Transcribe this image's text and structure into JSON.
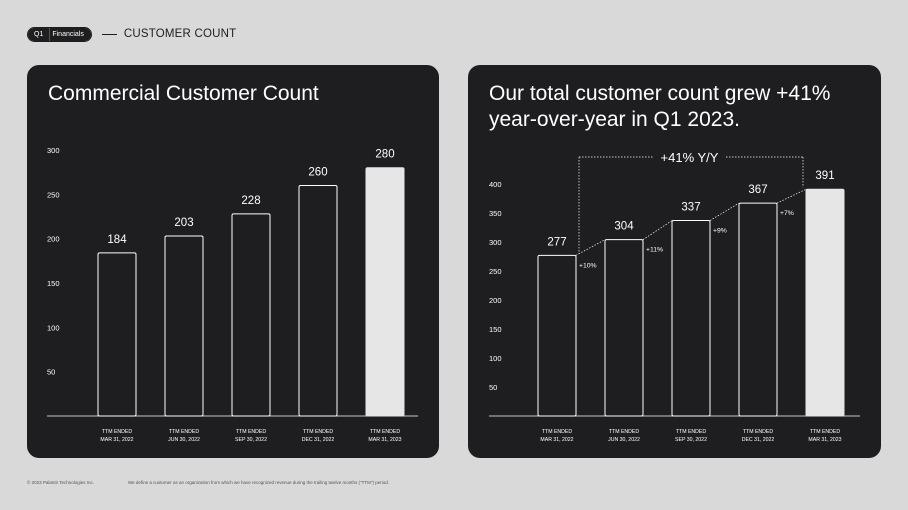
{
  "header": {
    "pill_q": "Q1",
    "pill_f": "Financials",
    "title": "CUSTOMER COUNT"
  },
  "footer": {
    "copyright": "© 2023 Palantir Technologies Inc.",
    "note": "We define a customer as an organization from which we have recognized revenue during the trailing twelve months (\"TTM\") period."
  },
  "colors": {
    "panel": "#1e1e20",
    "background": "#d9d9d9",
    "highlight_bar": "#e6e6e6",
    "bar_outline": "#ffffff"
  },
  "chart_data": [
    {
      "type": "bar",
      "title": "Commercial Customer Count",
      "categories": [
        [
          "TTM ENDED",
          "MAR 31, 2022"
        ],
        [
          "TTM ENDED",
          "JUN 30, 2022"
        ],
        [
          "TTM ENDED",
          "SEP 30, 2022"
        ],
        [
          "TTM ENDED",
          "DEC 31, 2022"
        ],
        [
          "TTM ENDED",
          "MAR 31, 2023"
        ]
      ],
      "values": [
        184,
        203,
        228,
        260,
        280
      ],
      "value_labels": [
        "184",
        "203",
        "228",
        "260",
        "280"
      ],
      "yticks": [
        50,
        100,
        150,
        200,
        250,
        300
      ],
      "ylim": [
        0,
        300
      ],
      "highlight_last": true,
      "grid": false
    },
    {
      "type": "bar",
      "title": "Our total customer count grew +41% year-over-year in Q1 2023.",
      "categories": [
        [
          "TTM ENDED",
          "MAR 31, 2022"
        ],
        [
          "TTM ENDED",
          "JUN 30, 2022"
        ],
        [
          "TTM ENDED",
          "SEP 30, 2022"
        ],
        [
          "TTM ENDED",
          "DEC 31, 2022"
        ],
        [
          "TTM ENDED",
          "MAR 31, 2023"
        ]
      ],
      "values": [
        277,
        304,
        337,
        367,
        391
      ],
      "value_labels": [
        "277",
        "304",
        "337",
        "367",
        "391"
      ],
      "growth_labels": [
        "+10%",
        "+11%",
        "+9%",
        "+7%"
      ],
      "yoy_label": "+41% Y/Y",
      "yticks": [
        50,
        100,
        150,
        200,
        250,
        300,
        350,
        400
      ],
      "ylim": [
        0,
        400
      ],
      "highlight_last": true,
      "grid": false
    }
  ]
}
